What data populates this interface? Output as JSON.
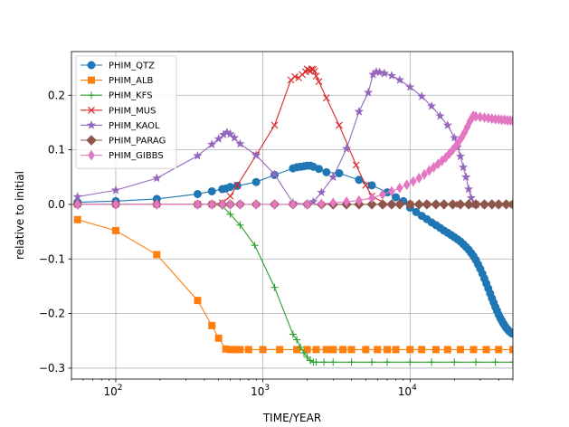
{
  "chart_data": {
    "type": "line",
    "xlabel": "TIME/YEAR",
    "ylabel": "relative to initial",
    "xscale": "log",
    "xlim": [
      50,
      50000
    ],
    "ylim": [
      -0.32,
      0.28
    ],
    "grid": true,
    "legend_position": "top-left",
    "x_ticks": [
      {
        "value": 100,
        "base": "10",
        "exp": "2"
      },
      {
        "value": 1000,
        "base": "10",
        "exp": "3"
      },
      {
        "value": 10000,
        "base": "10",
        "exp": "4"
      }
    ],
    "y_ticks": [
      {
        "value": 0.2,
        "label": "0.2"
      },
      {
        "value": 0.1,
        "label": "0.1"
      },
      {
        "value": 0.0,
        "label": "0.0"
      },
      {
        "value": -0.1,
        "label": "−0.1"
      },
      {
        "value": -0.2,
        "label": "−0.2"
      },
      {
        "value": -0.3,
        "label": "−0.3"
      }
    ],
    "series": [
      {
        "name": "PHIM_QTZ",
        "color": "#1f77b4",
        "marker": "circle",
        "x": [
          55,
          100,
          190,
          360,
          450,
          530,
          560,
          600,
          670,
          900,
          1200,
          1600,
          1700,
          1800,
          1900,
          2000,
          2100,
          2200,
          2400,
          2700,
          3300,
          4500,
          5500,
          7000,
          8000,
          9000,
          10000,
          11000,
          12000,
          13000,
          14000,
          15000,
          16000,
          17000,
          18000,
          19000,
          20000,
          21000,
          22000,
          23000,
          24000,
          25000,
          26000,
          27000,
          28000,
          29000,
          30000,
          31000,
          32000,
          33000,
          34000,
          35000,
          36000,
          37000,
          38000,
          39000,
          40000,
          41000,
          42000,
          43000,
          44000,
          45000,
          46000,
          47000,
          48000,
          49000,
          50000
        ],
        "y": [
          0.004,
          0.006,
          0.01,
          0.019,
          0.024,
          0.028,
          0.029,
          0.032,
          0.034,
          0.041,
          0.054,
          0.066,
          0.068,
          0.069,
          0.07,
          0.071,
          0.071,
          0.069,
          0.065,
          0.059,
          0.057,
          0.045,
          0.035,
          0.022,
          0.013,
          0.006,
          -0.006,
          -0.014,
          -0.021,
          -0.027,
          -0.033,
          -0.038,
          -0.043,
          -0.048,
          -0.052,
          -0.056,
          -0.06,
          -0.064,
          -0.068,
          -0.073,
          -0.078,
          -0.083,
          -0.089,
          -0.095,
          -0.102,
          -0.11,
          -0.118,
          -0.127,
          -0.136,
          -0.145,
          -0.154,
          -0.163,
          -0.172,
          -0.18,
          -0.188,
          -0.195,
          -0.202,
          -0.208,
          -0.213,
          -0.218,
          -0.222,
          -0.226,
          -0.229,
          -0.232,
          -0.234,
          -0.236,
          -0.237
        ]
      },
      {
        "name": "PHIM_ALB",
        "color": "#ff7f0e",
        "marker": "square",
        "x": [
          55,
          100,
          190,
          360,
          450,
          500,
          560,
          600,
          650,
          700,
          800,
          1000,
          1300,
          1700,
          2000,
          2300,
          2700,
          3000,
          3500,
          4000,
          5000,
          6000,
          7000,
          8000,
          10000,
          12000,
          15000,
          18000,
          22000,
          27000,
          33000,
          40000,
          50000
        ],
        "y": [
          -0.028,
          -0.048,
          -0.092,
          -0.176,
          -0.222,
          -0.245,
          -0.265,
          -0.266,
          -0.266,
          -0.266,
          -0.266,
          -0.266,
          -0.266,
          -0.266,
          -0.266,
          -0.266,
          -0.266,
          -0.266,
          -0.266,
          -0.266,
          -0.266,
          -0.266,
          -0.266,
          -0.266,
          -0.266,
          -0.266,
          -0.266,
          -0.266,
          -0.266,
          -0.266,
          -0.266,
          -0.266,
          -0.266
        ]
      },
      {
        "name": "PHIM_KFS",
        "color": "#2ca02c",
        "marker": "plus",
        "x": [
          55,
          100,
          190,
          360,
          450,
          530,
          600,
          700,
          880,
          1200,
          1600,
          1700,
          1800,
          1900,
          2000,
          2100,
          2200,
          2300,
          2600,
          3000,
          4000,
          5500,
          7000,
          10000,
          14000,
          20000,
          28000,
          38000,
          50000
        ],
        "y": [
          0.0,
          0.0,
          0.0,
          0.0,
          0.0,
          -0.003,
          -0.018,
          -0.038,
          -0.075,
          -0.152,
          -0.238,
          -0.248,
          -0.262,
          -0.272,
          -0.28,
          -0.286,
          -0.289,
          -0.289,
          -0.289,
          -0.289,
          -0.289,
          -0.289,
          -0.289,
          -0.289,
          -0.289,
          -0.289,
          -0.289,
          -0.289,
          -0.289
        ]
      },
      {
        "name": "PHIM_MUS",
        "color": "#d62728",
        "marker": "x",
        "x": [
          55,
          100,
          190,
          360,
          450,
          530,
          600,
          670,
          900,
          1200,
          1550,
          1650,
          1750,
          1850,
          1950,
          2000,
          2050,
          2100,
          2150,
          2200,
          2250,
          2300,
          2400,
          2700,
          3300,
          4300,
          5000,
          5500,
          7000,
          10000,
          14000,
          20000,
          28000,
          38000,
          50000
        ],
        "y": [
          0.0,
          0.0,
          0.0,
          0.0,
          0.0,
          0.003,
          0.015,
          0.035,
          0.09,
          0.145,
          0.228,
          0.234,
          0.232,
          0.238,
          0.243,
          0.248,
          0.246,
          0.244,
          0.248,
          0.247,
          0.244,
          0.235,
          0.225,
          0.195,
          0.145,
          0.072,
          0.035,
          0.015,
          0.0,
          0.0,
          0.0,
          0.0,
          0.0,
          0.0,
          0.0
        ]
      },
      {
        "name": "PHIM_KAOL",
        "color": "#9467bd",
        "marker": "star",
        "x": [
          55,
          100,
          190,
          360,
          450,
          500,
          540,
          570,
          600,
          640,
          700,
          900,
          1200,
          1600,
          2000,
          2200,
          2500,
          3000,
          3700,
          4500,
          5200,
          5600,
          5900,
          6200,
          6700,
          7500,
          8500,
          10000,
          12000,
          14000,
          16000,
          18000,
          20000,
          21000,
          22000,
          23000,
          24000,
          25000,
          26000,
          27000,
          28000,
          32000,
          40000,
          50000
        ],
        "y": [
          0.014,
          0.026,
          0.048,
          0.089,
          0.11,
          0.12,
          0.128,
          0.132,
          0.129,
          0.122,
          0.111,
          0.09,
          0.055,
          0.003,
          0.0,
          0.005,
          0.022,
          0.05,
          0.102,
          0.17,
          0.205,
          0.238,
          0.243,
          0.242,
          0.24,
          0.236,
          0.228,
          0.215,
          0.198,
          0.18,
          0.162,
          0.145,
          0.122,
          0.105,
          0.088,
          0.068,
          0.05,
          0.028,
          0.012,
          0.0,
          0.0,
          0.0,
          0.0,
          0.0
        ]
      },
      {
        "name": "PHIM_PARAG",
        "color": "#8c564b",
        "marker": "diamond",
        "x": [
          55,
          100,
          190,
          360,
          450,
          530,
          600,
          700,
          900,
          1200,
          1600,
          2000,
          2500,
          3000,
          3700,
          4500,
          5500,
          6500,
          7500,
          8500,
          10000,
          11500,
          13000,
          15000,
          17000,
          19500,
          22000,
          25000,
          28000,
          32000,
          36000,
          40000,
          45000,
          50000
        ],
        "y": [
          0.0,
          0.0,
          0.0,
          0.0,
          0.0,
          0.0,
          0.0,
          0.0,
          0.0,
          0.0,
          0.0,
          0.0,
          0.0,
          0.0,
          0.0,
          0.0,
          0.0,
          0.0,
          0.0,
          0.0,
          0.0,
          0.0,
          0.0,
          0.0,
          0.0,
          0.0,
          0.0,
          0.0,
          0.0,
          0.0,
          0.0,
          0.0,
          0.0,
          0.0
        ]
      },
      {
        "name": "PHIM_GIBBS",
        "color": "#e377c2",
        "marker": "thin_diamond",
        "x": [
          55,
          100,
          190,
          360,
          450,
          530,
          600,
          700,
          900,
          1200,
          1600,
          2000,
          2500,
          3000,
          3700,
          4500,
          5500,
          6500,
          7500,
          8500,
          9500,
          10500,
          11500,
          12500,
          13500,
          14500,
          15500,
          16500,
          17500,
          18500,
          19500,
          20500,
          21500,
          22500,
          23500,
          24500,
          25500,
          26500,
          27000,
          28000,
          30000,
          32000,
          34000,
          36000,
          38000,
          40000,
          42000,
          44000,
          46000,
          48000,
          50000
        ],
        "y": [
          0.0,
          0.0,
          0.0,
          0.0,
          0.0,
          0.0,
          0.0,
          0.0,
          0.0,
          0.0,
          0.0,
          0.0,
          0.001,
          0.003,
          0.005,
          0.007,
          0.012,
          0.018,
          0.024,
          0.03,
          0.036,
          0.042,
          0.048,
          0.055,
          0.062,
          0.068,
          0.074,
          0.08,
          0.086,
          0.093,
          0.1,
          0.107,
          0.115,
          0.123,
          0.132,
          0.142,
          0.152,
          0.16,
          0.162,
          0.161,
          0.16,
          0.159,
          0.158,
          0.157,
          0.156,
          0.156,
          0.155,
          0.155,
          0.154,
          0.154,
          0.153
        ]
      }
    ]
  }
}
